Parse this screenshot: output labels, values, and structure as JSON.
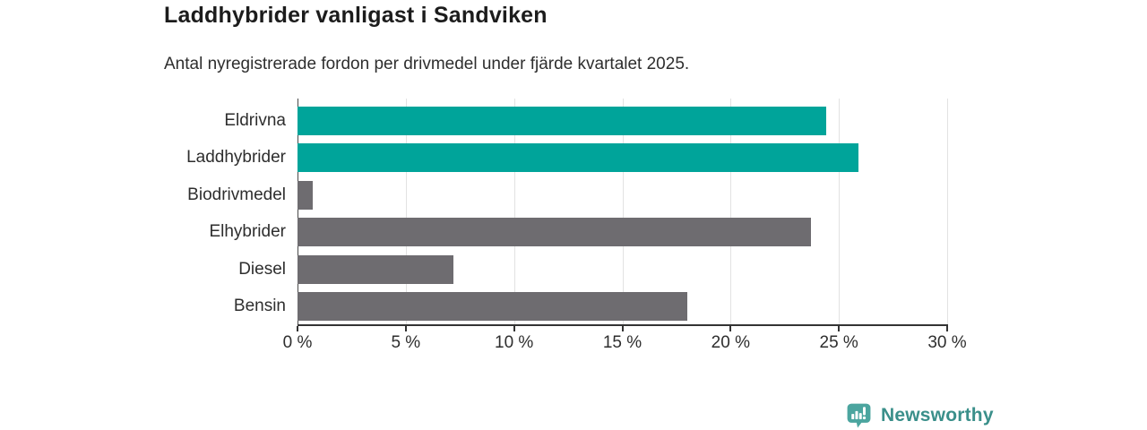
{
  "header": {
    "title": "Laddhybrider vanligast i Sandviken",
    "subtitle": "Antal nyregistrerade fordon per drivmedel under fjärde kvartalet 2025."
  },
  "chart_data": {
    "type": "bar",
    "orientation": "horizontal",
    "title": "Laddhybrider vanligast i Sandviken",
    "subtitle": "Antal nyregistrerade fordon per drivmedel under fjärde kvartalet 2025.",
    "categories": [
      "Eldrivna",
      "Laddhybrider",
      "Biodrivmedel",
      "Elhybrider",
      "Diesel",
      "Bensin"
    ],
    "values": [
      24.4,
      25.9,
      0.7,
      23.7,
      7.2,
      18.0
    ],
    "unit": "%",
    "bar_colors": [
      "#00a49a",
      "#00a49a",
      "#6e6c70",
      "#6e6c70",
      "#6e6c70",
      "#6e6c70"
    ],
    "xlim": [
      0,
      30
    ],
    "ticks": [
      0,
      5,
      10,
      15,
      20,
      25,
      30
    ],
    "tick_labels": [
      "0 %",
      "5 %",
      "10 %",
      "15 %",
      "20 %",
      "25 %",
      "30 %"
    ],
    "grid": true,
    "legend": false
  },
  "colors": {
    "accent_teal": "#00a49a",
    "bar_gray": "#6e6c70",
    "grid": "#e2e2e2",
    "axis": "#333333",
    "brand_teal": "#3a8f8a",
    "brand_icon": "#4ba59f"
  },
  "footer": {
    "brand_name": "Newsworthy",
    "brand_icon": "bar-chart-speech-bubble-icon"
  }
}
